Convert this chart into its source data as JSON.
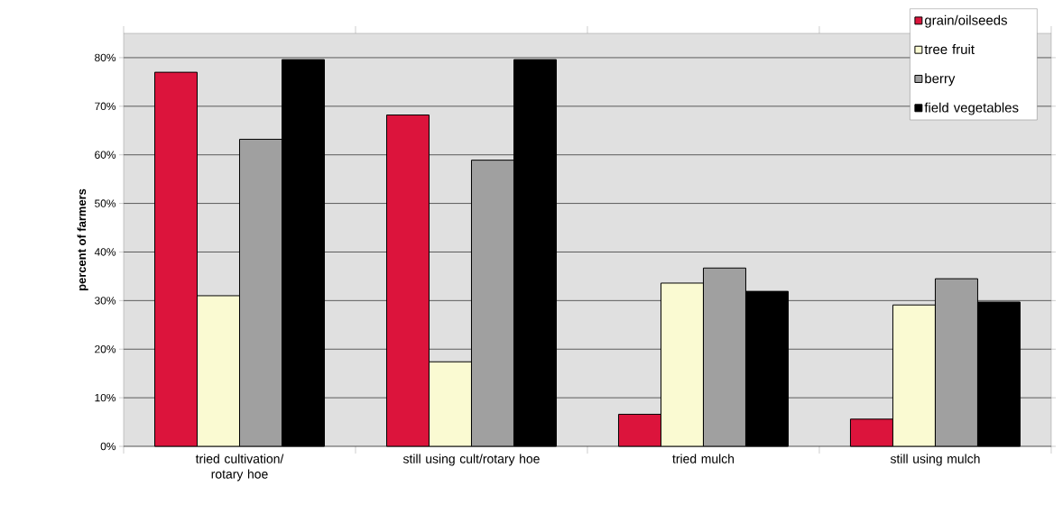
{
  "chart_data": {
    "type": "bar",
    "ylabel": "percent of farmers",
    "categories": [
      "tried cultivation/ rotary hoe",
      "still using cult/rotary hoe",
      "tried mulch",
      "still using mulch"
    ],
    "series": [
      {
        "name": "grain/oilseeds",
        "color": "#dc143c",
        "values": [
          77.0,
          68.2,
          6.6,
          5.6
        ]
      },
      {
        "name": "tree fruit",
        "color": "#fafad2",
        "values": [
          31.0,
          17.4,
          33.6,
          29.1
        ]
      },
      {
        "name": "berry",
        "color": "#a0a0a0",
        "values": [
          63.2,
          58.9,
          36.7,
          34.5
        ]
      },
      {
        "name": "field vegetables",
        "color": "#000000",
        "values": [
          79.6,
          79.6,
          31.9,
          29.7
        ]
      }
    ],
    "ylim": [
      0,
      85
    ],
    "yticks": [
      {
        "value": 0,
        "label": "0%"
      },
      {
        "value": 10,
        "label": "10%"
      },
      {
        "value": 20,
        "label": "20%"
      },
      {
        "value": 30,
        "label": "30%"
      },
      {
        "value": 40,
        "label": "40%"
      },
      {
        "value": 50,
        "label": "50%"
      },
      {
        "value": 60,
        "label": "60%"
      },
      {
        "value": 70,
        "label": "70%"
      },
      {
        "value": 80,
        "label": "80%"
      }
    ],
    "grid": "y",
    "legend": "top right"
  }
}
